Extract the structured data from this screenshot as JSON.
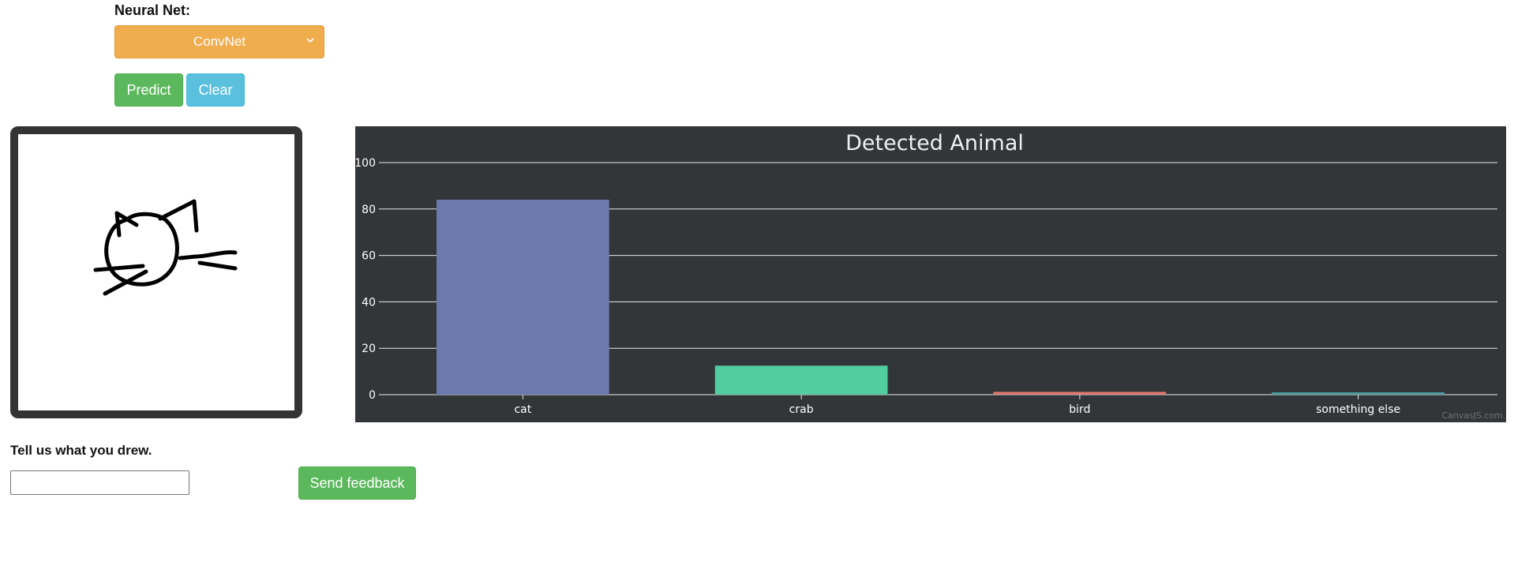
{
  "controls": {
    "neural_net_label": "Neural Net:",
    "neural_net_selected": "ConvNet",
    "predict_label": "Predict",
    "clear_label": "Clear"
  },
  "feedback": {
    "label": "Tell us what you drew.",
    "input_value": "",
    "send_label": "Send feedback"
  },
  "chart_data": {
    "type": "bar",
    "title": "Detected Animal",
    "categories": [
      "cat",
      "crab",
      "bird",
      "something else"
    ],
    "values": [
      84,
      12.5,
      1.2,
      1.0
    ],
    "colors": [
      "#6d78ad",
      "#51cda0",
      "#df7970",
      "#4c9ca0"
    ],
    "ylim": [
      0,
      100
    ],
    "yticks": [
      0,
      20,
      40,
      60,
      80,
      100
    ],
    "grid": true,
    "credit": "CanvasJS.com"
  },
  "colors": {
    "chart_background": "#323639",
    "predict_button": "#5cb85c",
    "clear_button": "#5bc0de",
    "select_background": "#f0ad4e"
  }
}
